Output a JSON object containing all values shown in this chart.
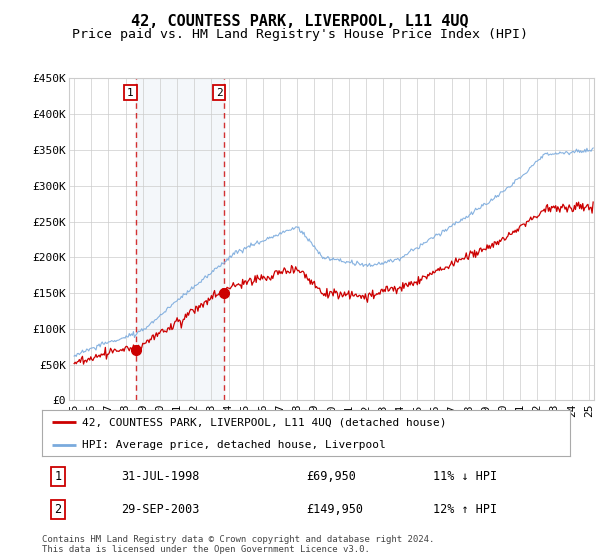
{
  "title": "42, COUNTESS PARK, LIVERPOOL, L11 4UQ",
  "subtitle": "Price paid vs. HM Land Registry's House Price Index (HPI)",
  "ylim": [
    0,
    450000
  ],
  "yticks": [
    0,
    50000,
    100000,
    150000,
    200000,
    250000,
    300000,
    350000,
    400000,
    450000
  ],
  "ytick_labels": [
    "£0",
    "£50K",
    "£100K",
    "£150K",
    "£200K",
    "£250K",
    "£300K",
    "£350K",
    "£400K",
    "£450K"
  ],
  "xlim_start": 1994.7,
  "xlim_end": 2025.3,
  "transaction1_date": 1998.58,
  "transaction1_price": 69950,
  "transaction1_label": "1",
  "transaction1_text": "31-JUL-1998",
  "transaction1_price_str": "£69,950",
  "transaction1_hpi_str": "11% ↓ HPI",
  "transaction2_date": 2003.75,
  "transaction2_price": 149950,
  "transaction2_label": "2",
  "transaction2_text": "29-SEP-2003",
  "transaction2_price_str": "£149,950",
  "transaction2_hpi_str": "12% ↑ HPI",
  "property_line_color": "#cc0000",
  "hpi_line_color": "#7aaadd",
  "dashed_line_color": "#cc0000",
  "shade_color": "#dce6f0",
  "background_color": "#ffffff",
  "grid_color": "#cccccc",
  "legend1_label": "42, COUNTESS PARK, LIVERPOOL, L11 4UQ (detached house)",
  "legend2_label": "HPI: Average price, detached house, Liverpool",
  "footer_text": "Contains HM Land Registry data © Crown copyright and database right 2024.\nThis data is licensed under the Open Government Licence v3.0.",
  "title_fontsize": 11,
  "subtitle_fontsize": 9.5,
  "axis_fontsize": 8
}
